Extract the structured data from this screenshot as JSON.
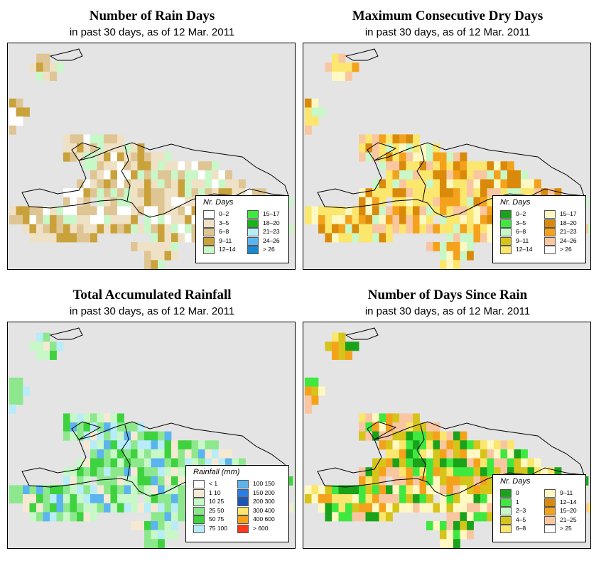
{
  "panels": [
    {
      "id": "rain-days",
      "title": "Number of Rain Days",
      "subtitle": "in past 30 days, as of  12 Mar. 2011",
      "legend": {
        "title": "Nr. Days",
        "items": [
          {
            "label": "0–2",
            "color": "#ffffff"
          },
          {
            "label": "3–5",
            "color": "#efe1c5"
          },
          {
            "label": "6–8",
            "color": "#dfc594"
          },
          {
            "label": "9–11",
            "color": "#c9a23c"
          },
          {
            "label": "12–14",
            "color": "#c8f7c8"
          },
          {
            "label": "15–17",
            "color": "#3fe83f"
          },
          {
            "label": "18–20",
            "color": "#1ab21a"
          },
          {
            "label": "21–23",
            "color": "#b7ecf8"
          },
          {
            "label": "24–26",
            "color": "#5cb4ef"
          },
          {
            "label": "> 26",
            "color": "#1a87d0"
          }
        ]
      }
    },
    {
      "id": "dry-days",
      "title": "Maximum Consecutive Dry Days",
      "subtitle": "in past 30 days, as of  12 Mar. 2011",
      "legend": {
        "title": "Nr. Days",
        "items": [
          {
            "label": "0–2",
            "color": "#1aa31a"
          },
          {
            "label": "3–5",
            "color": "#3fe83f"
          },
          {
            "label": "6–8",
            "color": "#c8f7c8"
          },
          {
            "label": "9–11",
            "color": "#d6c41a"
          },
          {
            "label": "12–14",
            "color": "#fbe66e"
          },
          {
            "label": "15–17",
            "color": "#fff8c2"
          },
          {
            "label": "18–20",
            "color": "#da8a0a"
          },
          {
            "label": "21–23",
            "color": "#f4a21c"
          },
          {
            "label": "24–26",
            "color": "#f9c6a2"
          },
          {
            "label": "> 26",
            "color": "#ffffff"
          }
        ]
      }
    },
    {
      "id": "rainfall",
      "title": "Total Accumulated Rainfall",
      "subtitle": "in past 30 days, as of  12 Mar. 2011",
      "legend": {
        "title": "Rainfall (mm)",
        "items": [
          {
            "label": "< 1",
            "color": "#ffffff"
          },
          {
            "label": "1    10",
            "color": "#f5e9d3"
          },
          {
            "label": "10    25",
            "color": "#c8f7c8"
          },
          {
            "label": "25    50",
            "color": "#8de88d"
          },
          {
            "label": "50    75",
            "color": "#3fd23f"
          },
          {
            "label": "75    100",
            "color": "#b7ecf8"
          },
          {
            "label": "100    150",
            "color": "#5cb4ef"
          },
          {
            "label": "150    200",
            "color": "#2a7de1"
          },
          {
            "label": "200    300",
            "color": "#1a55b8"
          },
          {
            "label": "300    400",
            "color": "#fbe66e"
          },
          {
            "label": "400    600",
            "color": "#f4a21c"
          },
          {
            "label": "> 600",
            "color": "#ff3a1a"
          }
        ]
      }
    },
    {
      "id": "since-rain",
      "title": "Number of Days Since Rain",
      "subtitle": "in past 30 days, as of  12 Mar. 2011",
      "legend": {
        "title": "Nr. Days",
        "items": [
          {
            "label": "0",
            "color": "#1aa31a"
          },
          {
            "label": "1",
            "color": "#3fe83f"
          },
          {
            "label": "2–3",
            "color": "#c8f7c8"
          },
          {
            "label": "4–5",
            "color": "#d6c41a"
          },
          {
            "label": "6–8",
            "color": "#fbe66e"
          },
          {
            "label": "9–11",
            "color": "#fff8c2"
          },
          {
            "label": "12–14",
            "color": "#da8a0a"
          },
          {
            "label": "15–20",
            "color": "#f4a21c"
          },
          {
            "label": "21–25",
            "color": "#f9c6a2"
          },
          {
            "label": "> 25",
            "color": "#ffffff"
          }
        ]
      }
    }
  ],
  "grid": {
    "rows": [
      "..........................................",
      "....##....................................",
      "...#####..................................",
      "....###...................................",
      "..........................................",
      "..........................................",
      "##.......................................",
      "###......................................",
      "##.......................................",
      "#........................................",
      "........#########.........................",
      "........############......................",
      "........################..................",
      "...........####################..........",
      "............#####################........",
      "..........#########################......",
      "........##############################...",
      "........####.#############################",
      "#########################################",
      "###################.#####################",
      "..#########################################",
      "...##########........###########..........",
      "..................#######.................",
      "....................#####.................",
      "....................###..................."
    ]
  }
}
